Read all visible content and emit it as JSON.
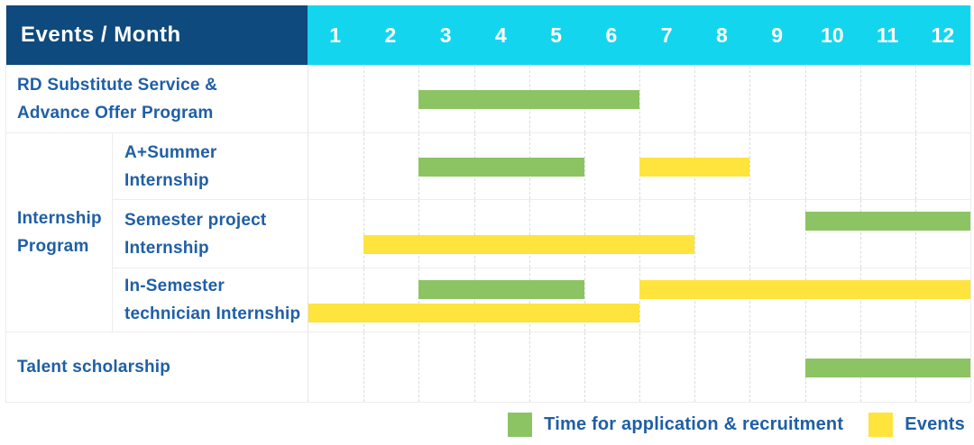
{
  "header": {
    "label": "Events / Month",
    "months": [
      "1",
      "2",
      "3",
      "4",
      "5",
      "6",
      "7",
      "8",
      "9",
      "10",
      "11",
      "12"
    ]
  },
  "colors": {
    "navy": "#0e4a7d",
    "cyan": "#14d5ee",
    "green": "#8cc463",
    "yellow": "#ffe43d",
    "label_text": "#1f5fa6"
  },
  "labels": {
    "rd": {
      "line1": "RD Substitute Service &",
      "line2": "Advance Offer Program"
    },
    "group": {
      "line1": "Internship",
      "line2": "Program"
    },
    "a_summer": {
      "line1": "A+Summer",
      "line2": "Internship"
    },
    "semester_project": {
      "line1": "Semester project",
      "line2": "Internship"
    },
    "in_semester": {
      "line1": "In-Semester",
      "line2": "technician Internship"
    },
    "talent": {
      "line1": "Talent scholarship"
    }
  },
  "legend": {
    "items": [
      {
        "color_key": "green",
        "label": "Time for application & recruitment"
      },
      {
        "color_key": "yellow",
        "label": "Events"
      }
    ]
  },
  "chart_data": {
    "type": "table",
    "subtype": "gantt",
    "title": "Events / Month",
    "x_axis": {
      "label": "Month",
      "ticks": [
        1,
        2,
        3,
        4,
        5,
        6,
        7,
        8,
        9,
        10,
        11,
        12
      ]
    },
    "legend_entries": {
      "green": "Time for application & recruitment",
      "yellow": "Events"
    },
    "rows": [
      {
        "label": "RD Substitute Service & Advance Offer Program",
        "group": null,
        "bars": [
          {
            "series": "Time for application & recruitment",
            "color": "green",
            "start_month": 3,
            "end_month": 6,
            "line": "center"
          }
        ]
      },
      {
        "label": "A+Summer Internship",
        "group": "Internship Program",
        "bars": [
          {
            "series": "Time for application & recruitment",
            "color": "green",
            "start_month": 3,
            "end_month": 5,
            "line": "center"
          },
          {
            "series": "Events",
            "color": "yellow",
            "start_month": 7,
            "end_month": 8,
            "line": "center"
          }
        ]
      },
      {
        "label": "Semester project Internship",
        "group": "Internship Program",
        "bars": [
          {
            "series": "Time for application & recruitment",
            "color": "green",
            "start_month": 10,
            "end_month": 12,
            "line": "top"
          },
          {
            "series": "Events",
            "color": "yellow",
            "start_month": 2,
            "end_month": 7,
            "line": "bottom"
          }
        ]
      },
      {
        "label": "In-Semester technician Internship",
        "group": "Internship Program",
        "bars": [
          {
            "series": "Time for application & recruitment",
            "color": "green",
            "start_month": 3,
            "end_month": 5,
            "line": "top"
          },
          {
            "series": "Events",
            "color": "yellow",
            "start_month": 7,
            "end_month": 12,
            "line": "top"
          },
          {
            "series": "Events",
            "color": "yellow",
            "start_month": 1,
            "end_month": 6,
            "line": "bottom"
          }
        ]
      },
      {
        "label": "Talent scholarship",
        "group": null,
        "bars": [
          {
            "series": "Time for application & recruitment",
            "color": "green",
            "start_month": 10,
            "end_month": 12,
            "line": "center"
          }
        ]
      }
    ]
  }
}
